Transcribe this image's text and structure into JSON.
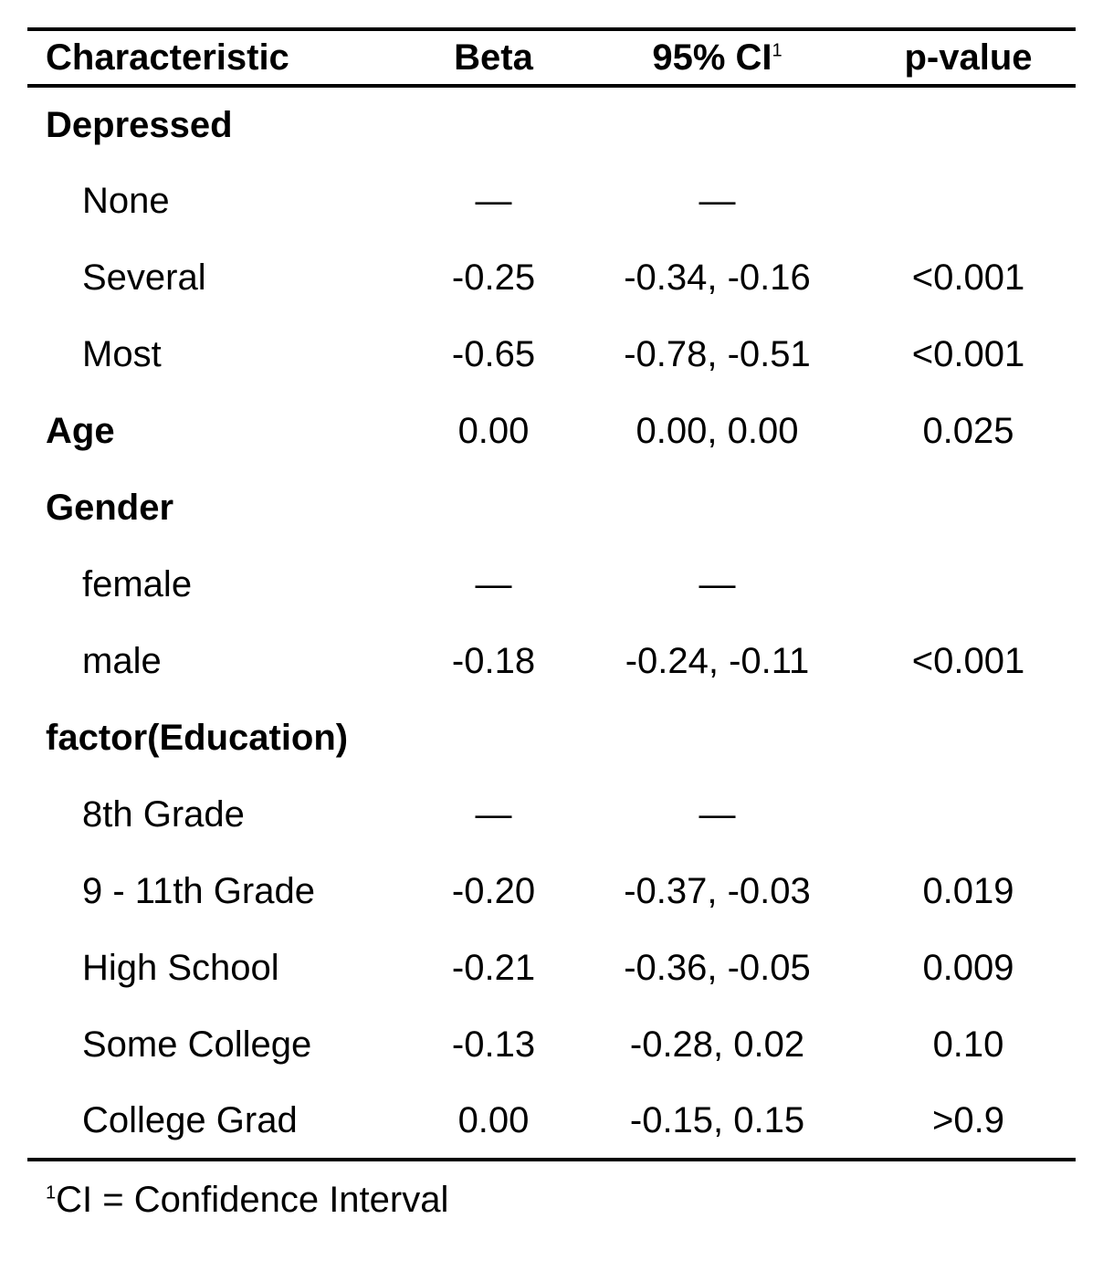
{
  "table": {
    "headers": {
      "characteristic": "Characteristic",
      "beta": "Beta",
      "ci": "95% CI",
      "ci_footnote_mark": "1",
      "pvalue": "p-value"
    },
    "rows": [
      {
        "label": "Depressed",
        "type": "group",
        "beta": "",
        "ci": "",
        "p": ""
      },
      {
        "label": "None",
        "type": "level",
        "beta": "—",
        "ci": "—",
        "p": ""
      },
      {
        "label": "Several",
        "type": "level",
        "beta": "-0.25",
        "ci": "-0.34, -0.16",
        "p": "<0.001"
      },
      {
        "label": "Most",
        "type": "level",
        "beta": "-0.65",
        "ci": "-0.78, -0.51",
        "p": "<0.001"
      },
      {
        "label": "Age",
        "type": "group",
        "beta": "0.00",
        "ci": "0.00, 0.00",
        "p": "0.025"
      },
      {
        "label": "Gender",
        "type": "group",
        "beta": "",
        "ci": "",
        "p": ""
      },
      {
        "label": "female",
        "type": "level",
        "beta": "—",
        "ci": "—",
        "p": ""
      },
      {
        "label": "male",
        "type": "level",
        "beta": "-0.18",
        "ci": "-0.24, -0.11",
        "p": "<0.001"
      },
      {
        "label": "factor(Education)",
        "type": "group",
        "beta": "",
        "ci": "",
        "p": ""
      },
      {
        "label": "8th Grade",
        "type": "level",
        "beta": "—",
        "ci": "—",
        "p": ""
      },
      {
        "label": "9 - 11th Grade",
        "type": "level",
        "beta": "-0.20",
        "ci": "-0.37, -0.03",
        "p": "0.019"
      },
      {
        "label": "High School",
        "type": "level",
        "beta": "-0.21",
        "ci": "-0.36, -0.05",
        "p": "0.009"
      },
      {
        "label": "Some College",
        "type": "level",
        "beta": "-0.13",
        "ci": "-0.28, 0.02",
        "p": "0.10"
      },
      {
        "label": "College Grad",
        "type": "level",
        "beta": "0.00",
        "ci": "-0.15, 0.15",
        "p": ">0.9"
      }
    ]
  },
  "footnote": {
    "mark": "1",
    "text": "CI = Confidence Interval"
  }
}
